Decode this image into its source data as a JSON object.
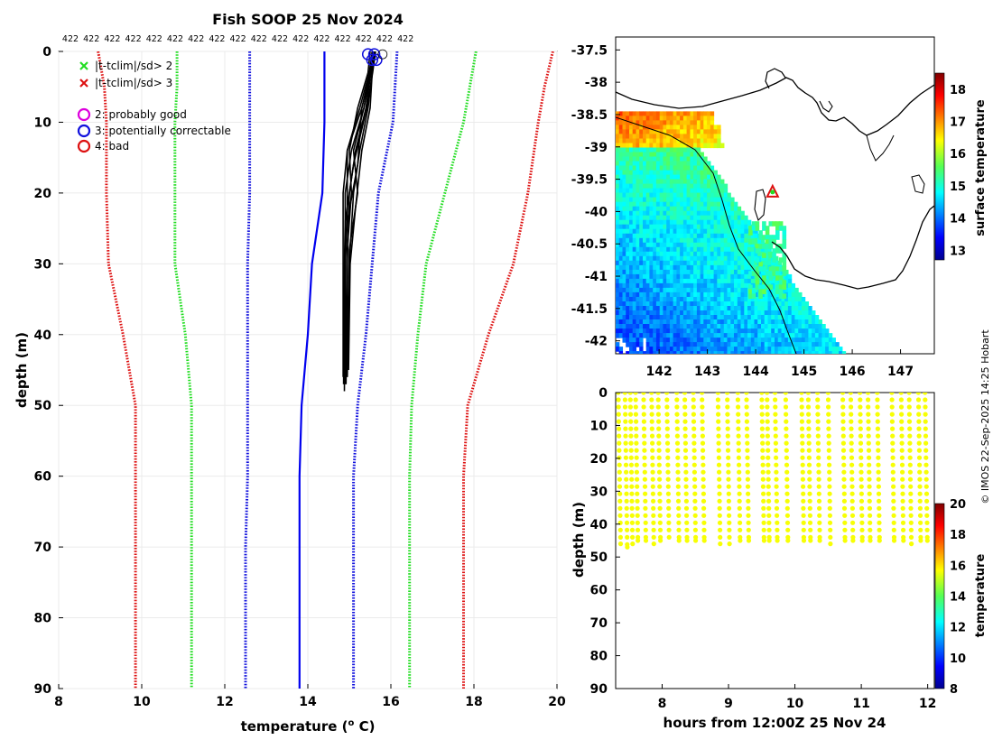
{
  "figure": {
    "title": "Fish SOOP 25 Nov 2024",
    "credit": "© IMOS 22-Sep-2025 14:25 Hobart"
  },
  "colors": {
    "sd2": "#22dd22",
    "sd3": "#dd1111",
    "probably_good": "#dd00dd",
    "potentially_correctable": "#1111dd",
    "bad": "#dd1111",
    "clim_mean": "#0000ee",
    "profile": "#000000"
  },
  "chart_data": [
    {
      "id": "profile",
      "type": "line",
      "title": "Fish SOOP 25 Nov 2024",
      "xlabel": "temperature (",
      "xlabel_sup": "o",
      "xlabel_end": " C)",
      "ylabel": "depth (m)",
      "xlim": [
        8,
        20
      ],
      "ylim": [
        90,
        0
      ],
      "xticks": [
        "8",
        "10",
        "12",
        "14",
        "16",
        "18",
        "20"
      ],
      "yticks": [
        "0",
        "10",
        "20",
        "30",
        "40",
        "50",
        "60",
        "70",
        "80",
        "90"
      ],
      "top_labels": [
        "422",
        "422",
        "422",
        "422",
        "422",
        "422",
        "422",
        "422",
        "422",
        "422",
        "422",
        "422",
        "422",
        "422",
        "422",
        "422",
        "422"
      ],
      "legend": [
        {
          "marker": "x",
          "color": "#22dd22",
          "label": "|t-tclim|/sd> 2"
        },
        {
          "marker": "x",
          "color": "#dd1111",
          "label": "|t-tclim|/sd> 3"
        },
        {
          "marker": "o",
          "color": "#dd00dd",
          "label": "2: probably good"
        },
        {
          "marker": "o",
          "color": "#1111dd",
          "label": "3: potentially correctable"
        },
        {
          "marker": "o",
          "color": "#dd1111",
          "label": "4: bad"
        }
      ],
      "climatology_depths": [
        0,
        5,
        10,
        20,
        30,
        40,
        50,
        60,
        70,
        80,
        90
      ],
      "series": [
        {
          "name": "clim-3sd-low",
          "color": "#dd1111",
          "style": "dotted",
          "values": [
            8.95,
            9.1,
            9.15,
            9.15,
            9.2,
            9.55,
            9.85,
            9.85,
            9.85,
            9.85,
            9.85
          ]
        },
        {
          "name": "clim-2sd-low",
          "color": "#22dd22",
          "style": "dotted",
          "values": [
            10.85,
            10.85,
            10.8,
            10.8,
            10.8,
            11.05,
            11.2,
            11.2,
            11.2,
            11.2,
            11.2
          ]
        },
        {
          "name": "clim-1sd-low",
          "color": "#1111dd",
          "style": "dotted",
          "values": [
            12.6,
            12.6,
            12.6,
            12.6,
            12.55,
            12.55,
            12.55,
            12.55,
            12.5,
            12.5,
            12.5
          ]
        },
        {
          "name": "clim-mean",
          "color": "#0000ee",
          "style": "solid",
          "values": [
            14.4,
            14.4,
            14.4,
            14.35,
            14.1,
            14,
            13.85,
            13.8,
            13.8,
            13.8,
            13.8
          ]
        },
        {
          "name": "clim-1sd-high",
          "color": "#1111dd",
          "style": "dotted",
          "values": [
            16.15,
            16.1,
            16.05,
            15.7,
            15.55,
            15.4,
            15.2,
            15.1,
            15.1,
            15.1,
            15.1
          ]
        },
        {
          "name": "clim-2sd-high",
          "color": "#22dd22",
          "style": "dotted",
          "values": [
            18.05,
            17.9,
            17.75,
            17.3,
            16.85,
            16.65,
            16.5,
            16.45,
            16.45,
            16.45,
            16.45
          ]
        },
        {
          "name": "clim-3sd-high",
          "color": "#dd1111",
          "style": "dotted",
          "values": [
            19.9,
            19.7,
            19.55,
            19.3,
            18.95,
            18.35,
            17.85,
            17.75,
            17.75,
            17.75,
            17.75
          ]
        }
      ],
      "profiles": [
        {
          "depths": [
            0,
            3,
            8,
            14,
            20,
            30,
            48
          ],
          "values": [
            15.55,
            15.5,
            15.35,
            15.05,
            14.9,
            14.9,
            14.88
          ]
        },
        {
          "depths": [
            0,
            3,
            8,
            14,
            20,
            30,
            46
          ],
          "values": [
            15.6,
            15.5,
            15.3,
            14.95,
            14.85,
            14.85,
            14.85
          ]
        },
        {
          "depths": [
            0,
            3,
            8,
            14,
            20,
            30,
            47
          ],
          "values": [
            15.58,
            15.52,
            15.4,
            15.15,
            15.0,
            14.95,
            14.92
          ]
        },
        {
          "depths": [
            0,
            3,
            8,
            14,
            20,
            30,
            46
          ],
          "values": [
            15.62,
            15.55,
            15.45,
            15.25,
            15.1,
            15.0,
            14.95
          ]
        },
        {
          "depths": [
            0,
            3,
            8,
            14,
            22,
            30,
            47
          ],
          "values": [
            15.55,
            15.48,
            15.25,
            14.95,
            14.95,
            14.9,
            14.9
          ]
        },
        {
          "depths": [
            0,
            3,
            8,
            14,
            22,
            30,
            45
          ],
          "values": [
            15.6,
            15.55,
            15.5,
            15.3,
            15.15,
            15.02,
            14.98
          ]
        },
        {
          "depths": [
            0,
            3,
            8,
            16,
            24,
            30,
            46
          ],
          "values": [
            15.57,
            15.5,
            15.3,
            15.2,
            14.95,
            14.9,
            14.87
          ]
        },
        {
          "depths": [
            0,
            3,
            8,
            16,
            24,
            30,
            47
          ],
          "values": [
            15.63,
            15.56,
            15.42,
            15.1,
            14.9,
            14.88,
            14.86
          ]
        },
        {
          "depths": [
            0,
            3,
            8,
            14,
            20,
            28,
            45
          ],
          "values": [
            15.5,
            15.45,
            15.2,
            15.0,
            15.05,
            14.95,
            14.9
          ]
        },
        {
          "depths": [
            0,
            3,
            8,
            14,
            20,
            28,
            46
          ],
          "values": [
            15.6,
            15.52,
            15.35,
            15.1,
            15.2,
            15.0,
            14.93
          ]
        }
      ],
      "flags_at_surface": [
        15.45,
        15.55,
        15.6,
        15.65,
        15.8
      ]
    },
    {
      "id": "map",
      "type": "heatmap",
      "xlim": [
        141.1,
        147.7
      ],
      "ylim": [
        -42.2,
        -37.3
      ],
      "xticks": [
        "142",
        "143",
        "144",
        "145",
        "146",
        "147"
      ],
      "yticks": [
        "-37.5",
        "-38",
        "-38.5",
        "-39",
        "-39.5",
        "-40",
        "-40.5",
        "-41",
        "-41.5",
        "-42"
      ],
      "colorbar_label": "surface temperature",
      "colorbar_ticks": [
        "13",
        "14",
        "15",
        "16",
        "17",
        "18"
      ],
      "colorbar_range": [
        12.7,
        18.5
      ],
      "vessel_position": {
        "lon": 144.35,
        "lat": -39.7
      }
    },
    {
      "id": "timeseries",
      "type": "scatter",
      "xlabel": "hours from 12:00Z 25 Nov 24",
      "ylabel": "depth (m)",
      "xlim": [
        7.3,
        12.1
      ],
      "ylim": [
        90,
        0
      ],
      "xticks": [
        "8",
        "9",
        "10",
        "11",
        "12"
      ],
      "yticks": [
        "0",
        "10",
        "20",
        "30",
        "40",
        "50",
        "60",
        "70",
        "80",
        "90"
      ],
      "colorbar_label": "temperature",
      "colorbar_ticks": [
        "8",
        "10",
        "12",
        "14",
        "16",
        "18",
        "20"
      ],
      "colorbar_range": [
        8,
        20
      ],
      "casts_hours": [
        7.34,
        7.44,
        7.52,
        7.6,
        7.72,
        7.84,
        7.94,
        8.07,
        8.22,
        8.34,
        8.47,
        8.6,
        8.84,
        8.98,
        9.14,
        9.27,
        9.5,
        9.58,
        9.7,
        9.86,
        10.1,
        10.2,
        10.34,
        10.5,
        10.72,
        10.84,
        10.98,
        11.1,
        11.24,
        11.46,
        11.6,
        11.72,
        11.86,
        11.96
      ],
      "casts_max_depth": [
        46,
        47,
        46,
        45,
        45,
        46,
        45,
        44,
        45,
        45,
        45,
        45,
        46,
        46,
        45,
        45,
        45,
        45,
        45,
        45,
        45,
        45,
        45,
        46,
        45,
        45,
        45,
        45,
        45,
        45,
        45,
        46,
        45,
        45
      ],
      "points_temperature": 15.6
    }
  ]
}
